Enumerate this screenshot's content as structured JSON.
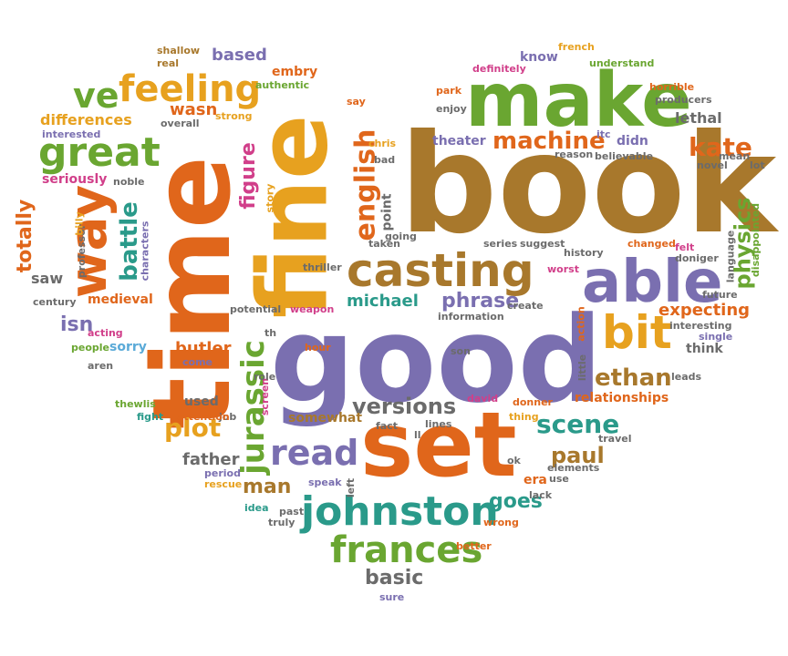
{
  "palette": {
    "orange": "#e0661b",
    "brown": "#a8782c",
    "green": "#6aa631",
    "gold": "#e7a11f",
    "purple": "#7a6fb0",
    "teal": "#2a9a8a",
    "gray": "#6b6b6b",
    "magenta": "#d13f8a",
    "sky": "#5aaad8"
  },
  "words": [
    "book",
    "good",
    "time",
    "fine",
    "make",
    "set",
    "able",
    "casting",
    "way",
    "great",
    "feeling",
    "ve",
    "johnston",
    "frances",
    "jurassic",
    "read",
    "bit",
    "english",
    "machine",
    "kate",
    "scene",
    "physics",
    "battle",
    "totally",
    "ethan",
    "plot",
    "versions",
    "paul",
    "figure",
    "phrase",
    "michael",
    "isn",
    "man",
    "expecting",
    "goes",
    "basic",
    "butler",
    "father",
    "based",
    "wasn",
    "differences",
    "lethal",
    "theater",
    "embry",
    "shallow",
    "real",
    "authentic",
    "strong",
    "overall",
    "interested",
    "seriously",
    "noble",
    "professor",
    "billy",
    "characters",
    "saw",
    "century",
    "medieval",
    "acting",
    "people",
    "sorry",
    "aren",
    "come",
    "hour",
    "thriller",
    "weapon",
    "potential",
    "th",
    "used",
    "job",
    "attention",
    "thewlis",
    "fight",
    "rescue",
    "period",
    "idea",
    "truly",
    "speak",
    "past",
    "left",
    "somewhat",
    "screen",
    "role",
    "fact",
    "ll",
    "lines",
    "david",
    "donner",
    "son",
    "thing",
    "era",
    "use",
    "ok",
    "elements",
    "lack",
    "wrong",
    "better",
    "sure",
    "travel",
    "leads",
    "relationships",
    "little",
    "action",
    "interesting",
    "single",
    "think",
    "future",
    "felt",
    "doniger",
    "language",
    "disappointed",
    "changed",
    "history",
    "worst",
    "series",
    "suggest",
    "taken",
    "point",
    "chris",
    "bad",
    "story",
    "say",
    "going",
    "park",
    "enjoy",
    "definitely",
    "know",
    "french",
    "understand",
    "horrible",
    "producers",
    "didn",
    "itc",
    "reason",
    "believable",
    "novel",
    "mean",
    "lot",
    "information",
    "create"
  ]
}
